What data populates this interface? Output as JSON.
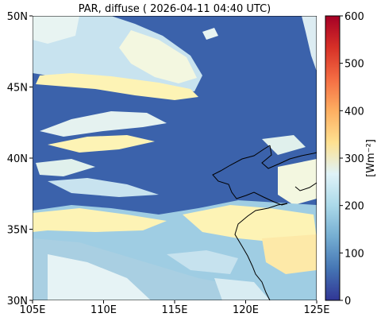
{
  "title": "PAR, diffuse ( 2026-04-11 04:40 UTC)",
  "x_ticks": [
    "105E",
    "110E",
    "115E",
    "120E",
    "125E"
  ],
  "y_ticks": [
    "50N",
    "45N",
    "40N",
    "35N",
    "30N"
  ],
  "colorbar": {
    "label": "[Wm⁻²]",
    "ticks": [
      "0",
      "100",
      "200",
      "300",
      "400",
      "500",
      "600"
    ],
    "colors": [
      "#313695",
      "#4575b4",
      "#74add1",
      "#abd9e9",
      "#e0f3f8",
      "#fee090",
      "#fdae61",
      "#f46d43",
      "#d73027",
      "#a50026"
    ]
  },
  "map_colors": {
    "background": "#3b62ab",
    "bright": "#fdf3b5"
  }
}
